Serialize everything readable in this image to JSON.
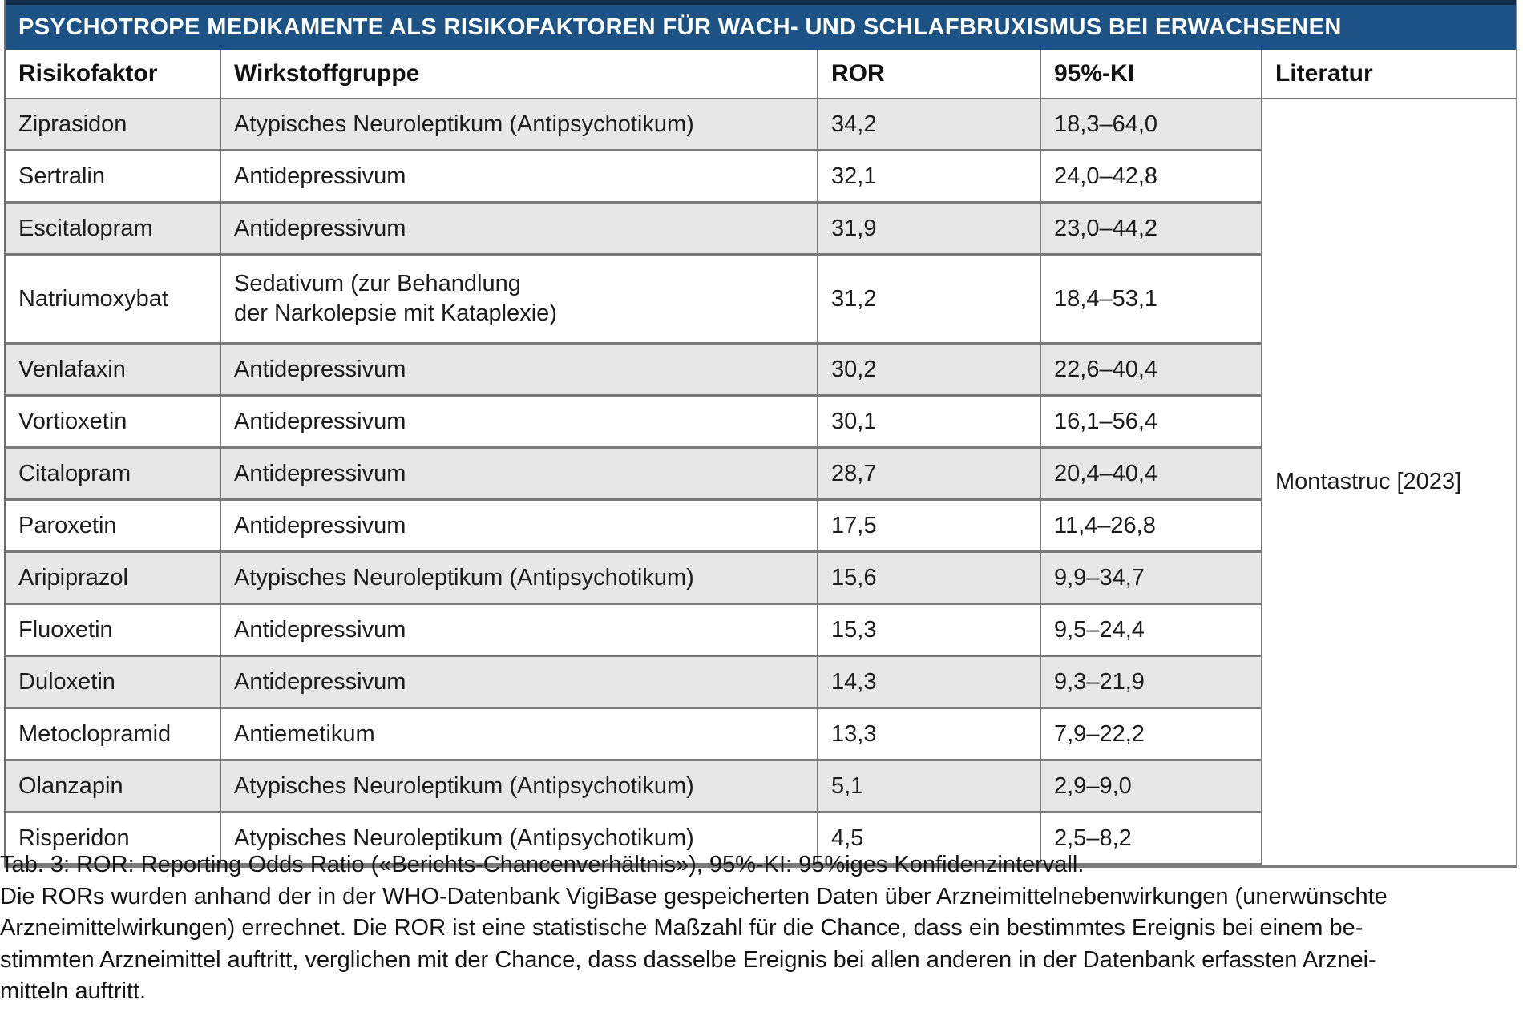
{
  "table": {
    "title": "PSYCHOTROPE MEDIKAMENTE ALS RISIKOFAKTOREN FÜR WACH- UND SCHLAFBRUXISMUS BEI ERWACHSENEN",
    "columns": [
      "Risikofaktor",
      "Wirkstoffgruppe",
      "ROR",
      "95%-KI",
      "Literatur"
    ],
    "literature": "Montastruc [2023]",
    "rows": [
      {
        "factor": "Ziprasidon",
        "group": "Atypisches Neuroleptikum (Antipsychotikum)",
        "ror": "34,2",
        "ki": "18,3–64,0",
        "shaded": true
      },
      {
        "factor": "Sertralin",
        "group": "Antidepressivum",
        "ror": "32,1",
        "ki": "24,0–42,8",
        "shaded": false
      },
      {
        "factor": "Escitalopram",
        "group": "Antidepressivum",
        "ror": "31,9",
        "ki": "23,0–44,2",
        "shaded": true
      },
      {
        "factor": "Natriumoxybat",
        "group": "Sedativum (zur Behandlung\nder Narkolepsie mit Kataplexie)",
        "ror": "31,2",
        "ki": "18,4–53,1",
        "shaded": false,
        "tall": true
      },
      {
        "factor": "Venlafaxin",
        "group": "Antidepressivum",
        "ror": "30,2",
        "ki": "22,6–40,4",
        "shaded": true
      },
      {
        "factor": "Vortioxetin",
        "group": "Antidepressivum",
        "ror": "30,1",
        "ki": "16,1–56,4",
        "shaded": false
      },
      {
        "factor": "Citalopram",
        "group": "Antidepressivum",
        "ror": "28,7",
        "ki": "20,4–40,4",
        "shaded": true
      },
      {
        "factor": "Paroxetin",
        "group": "Antidepressivum",
        "ror": "17,5",
        "ki": "11,4–26,8",
        "shaded": false
      },
      {
        "factor": "Aripiprazol",
        "group": "Atypisches Neuroleptikum (Antipsychotikum)",
        "ror": "15,6",
        "ki": "9,9–34,7",
        "shaded": true
      },
      {
        "factor": "Fluoxetin",
        "group": "Antidepressivum",
        "ror": "15,3",
        "ki": "9,5–24,4",
        "shaded": false
      },
      {
        "factor": "Duloxetin",
        "group": "Antidepressivum",
        "ror": "14,3",
        "ki": "9,3–21,9",
        "shaded": true
      },
      {
        "factor": "Metoclopramid",
        "group": "Antiemetikum",
        "ror": "13,3",
        "ki": "7,9–22,2",
        "shaded": false
      },
      {
        "factor": "Olanzapin",
        "group": "Atypisches Neuroleptikum (Antipsychotikum)",
        "ror": "5,1",
        "ki": "2,9–9,0",
        "shaded": true
      },
      {
        "factor": "Risperidon",
        "group": "Atypisches Neuroleptikum (Antipsychotikum)",
        "ror": "4,5",
        "ki": "2,5–8,2",
        "shaded": false
      }
    ]
  },
  "caption": {
    "lines": [
      "Tab. 3: ROR: Reporting Odds Ratio («Berichts-Chancenverhältnis»), 95%-KI: 95%iges Konfidenzintervall.",
      "Die RORs wurden anhand der in der WHO-Datenbank VigiBase gespeicherten Daten über Arzneimittelnebenwirkungen (unerwünschte",
      "Arzneimittelwirkungen) errechnet. Die ROR ist eine statistische Maßzahl für die Chance, dass ein bestimmtes Ereignis bei einem be-",
      "stimmten Arzneimittel auftritt, verglichen mit der Chance, dass dasselbe Ereignis bei allen anderen in der Datenbank erfassten Arznei-",
      "mitteln auftritt."
    ]
  },
  "colors": {
    "title_bar_bg": "#1c5284",
    "title_bar_top_border": "#0e2c4a",
    "row_stripe": "#e7e7e7",
    "grid_line": "#7a7a7a",
    "title_text": "#ffffff",
    "body_text": "#1c1c1c"
  }
}
